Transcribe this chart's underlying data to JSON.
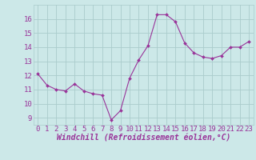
{
  "x": [
    0,
    1,
    2,
    3,
    4,
    5,
    6,
    7,
    8,
    9,
    10,
    11,
    12,
    13,
    14,
    15,
    16,
    17,
    18,
    19,
    20,
    21,
    22,
    23
  ],
  "y": [
    12.1,
    11.3,
    11.0,
    10.9,
    11.4,
    10.9,
    10.7,
    10.6,
    8.85,
    9.5,
    11.8,
    13.1,
    14.1,
    16.3,
    16.3,
    15.8,
    14.3,
    13.6,
    13.3,
    13.2,
    13.4,
    14.0,
    14.0,
    14.4
  ],
  "line_color": "#993399",
  "marker_color": "#993399",
  "bg_color": "#cce8e8",
  "grid_color": "#aacccc",
  "xlabel": "Windchill (Refroidissement éolien,°C)",
  "xlabel_color": "#993399",
  "tick_color": "#993399",
  "label_color": "#993399",
  "ylim": [
    8.5,
    17.0
  ],
  "xlim": [
    -0.5,
    23.5
  ],
  "yticks": [
    9,
    10,
    11,
    12,
    13,
    14,
    15,
    16
  ],
  "xticks": [
    0,
    1,
    2,
    3,
    4,
    5,
    6,
    7,
    8,
    9,
    10,
    11,
    12,
    13,
    14,
    15,
    16,
    17,
    18,
    19,
    20,
    21,
    22,
    23
  ],
  "font_size": 6.5,
  "xlabel_size": 7.0
}
